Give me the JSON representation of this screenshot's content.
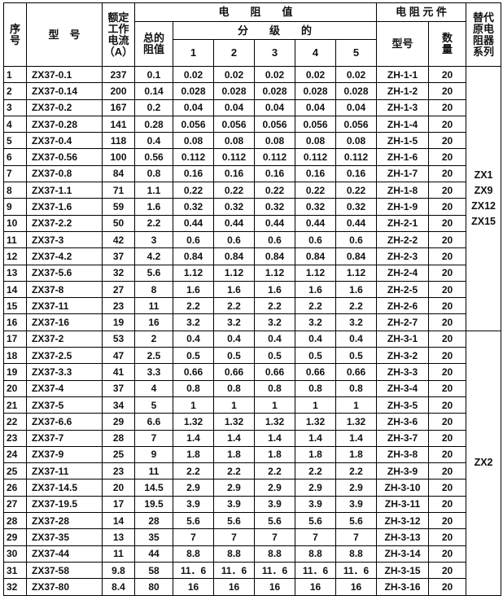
{
  "header": {
    "index": "序号",
    "model": "型　号",
    "rated_current": [
      "额定",
      "工作",
      "电流",
      "（A）"
    ],
    "resistance": "电　　阻　　值",
    "total": [
      "总的",
      "阻值"
    ],
    "graded": "分　　级　　的",
    "grades": [
      "1",
      "2",
      "3",
      "4",
      "5"
    ],
    "element": "电 阻 元 件",
    "element_model": "型号",
    "quantity": [
      "数",
      "量"
    ],
    "replaces": [
      "替代",
      "原电",
      "阻器",
      "系列"
    ]
  },
  "rows": [
    [
      "1",
      "ZX37-0.1",
      "237",
      "0.1",
      "0.02",
      "0.02",
      "0.02",
      "0.02",
      "0.02",
      "ZH-1-1",
      "20"
    ],
    [
      "2",
      "ZX37-0.14",
      "200",
      "0.14",
      "0.028",
      "0.028",
      "0.028",
      "0.028",
      "0.028",
      "ZH-1-2",
      "20"
    ],
    [
      "3",
      "ZX37-0.2",
      "167",
      "0.2",
      "0.04",
      "0.04",
      "0.04",
      "0.04",
      "0.04",
      "ZH-1-3",
      "20"
    ],
    [
      "4",
      "ZX37-0.28",
      "141",
      "0.28",
      "0.056",
      "0.056",
      "0.056",
      "0.056",
      "0.056",
      "ZH-1-4",
      "20"
    ],
    [
      "5",
      "ZX37-0.4",
      "118",
      "0.4",
      "0.08",
      "0.08",
      "0.08",
      "0.08",
      "0.08",
      "ZH-1-5",
      "20"
    ],
    [
      "6",
      "ZX37-0.56",
      "100",
      "0.56",
      "0.112",
      "0.112",
      "0.112",
      "0.112",
      "0.112",
      "ZH-1-6",
      "20"
    ],
    [
      "7",
      "ZX37-0.8",
      "84",
      "0.8",
      "0.16",
      "0.16",
      "0.16",
      "0.16",
      "0.16",
      "ZH-1-7",
      "20"
    ],
    [
      "8",
      "ZX37-1.1",
      "71",
      "1.1",
      "0.22",
      "0.22",
      "0.22",
      "0.22",
      "0.22",
      "ZH-1-8",
      "20"
    ],
    [
      "9",
      "ZX37-1.6",
      "59",
      "1.6",
      "0.32",
      "0.32",
      "0.32",
      "0.32",
      "0.32",
      "ZH-1-9",
      "20"
    ],
    [
      "10",
      "ZX37-2.2",
      "50",
      "2.2",
      "0.44",
      "0.44",
      "0.44",
      "0.44",
      "0.44",
      "ZH-2-1",
      "20"
    ],
    [
      "11",
      "ZX37-3",
      "42",
      "3",
      "0.6",
      "0.6",
      "0.6",
      "0.6",
      "0.6",
      "ZH-2-2",
      "20"
    ],
    [
      "12",
      "ZX37-4.2",
      "37",
      "4.2",
      "0.84",
      "0.84",
      "0.84",
      "0.84",
      "0.84",
      "ZH-2-3",
      "20"
    ],
    [
      "13",
      "ZX37-5.6",
      "32",
      "5.6",
      "1.12",
      "1.12",
      "1.12",
      "1.12",
      "1.12",
      "ZH-2-4",
      "20"
    ],
    [
      "14",
      "ZX37-8",
      "27",
      "8",
      "1.6",
      "1.6",
      "1.6",
      "1.6",
      "1.6",
      "ZH-2-5",
      "20"
    ],
    [
      "15",
      "ZX37-11",
      "23",
      "11",
      "2.2",
      "2.2",
      "2.2",
      "2.2",
      "2.2",
      "ZH-2-6",
      "20"
    ],
    [
      "16",
      "ZX37-16",
      "19",
      "16",
      "3.2",
      "3.2",
      "3.2",
      "3.2",
      "3.2",
      "ZH-2-7",
      "20"
    ],
    [
      "17",
      "ZX37-2",
      "53",
      "2",
      "0.4",
      "0.4",
      "0.4",
      "0.4",
      "0.4",
      "ZH-3-1",
      "20"
    ],
    [
      "18",
      "ZX37-2.5",
      "47",
      "2.5",
      "0.5",
      "0.5",
      "0.5",
      "0.5",
      "0.5",
      "ZH-3-2",
      "20"
    ],
    [
      "19",
      "ZX37-3.3",
      "41",
      "3.3",
      "0.66",
      "0.66",
      "0.66",
      "0.66",
      "0.66",
      "ZH-3-3",
      "20"
    ],
    [
      "20",
      "ZX37-4",
      "37",
      "4",
      "0.8",
      "0.8",
      "0.8",
      "0.8",
      "0.8",
      "ZH-3-4",
      "20"
    ],
    [
      "21",
      "ZX37-5",
      "34",
      "5",
      "1",
      "1",
      "1",
      "1",
      "1",
      "ZH-3-5",
      "20"
    ],
    [
      "22",
      "ZX37-6.6",
      "29",
      "6.6",
      "1.32",
      "1.32",
      "1.32",
      "1.32",
      "1.32",
      "ZH-3-6",
      "20"
    ],
    [
      "23",
      "ZX37-7",
      "28",
      "7",
      "1.4",
      "1.4",
      "1.4",
      "1.4",
      "1.4",
      "ZH-3-7",
      "20"
    ],
    [
      "24",
      "ZX37-9",
      "25",
      "9",
      "1.8",
      "1.8",
      "1.8",
      "1.8",
      "1.8",
      "ZH-3-8",
      "20"
    ],
    [
      "25",
      "ZX37-11",
      "23",
      "11",
      "2.2",
      "2.2",
      "2.2",
      "2.2",
      "2.2",
      "ZH-3-9",
      "20"
    ],
    [
      "26",
      "ZX37-14.5",
      "20",
      "14.5",
      "2.9",
      "2.9",
      "2.9",
      "2.9",
      "2.9",
      "ZH-3-10",
      "20"
    ],
    [
      "27",
      "ZX37-19.5",
      "17",
      "19.5",
      "3.9",
      "3.9",
      "3.9",
      "3.9",
      "3.9",
      "ZH-3-11",
      "20"
    ],
    [
      "28",
      "ZX37-28",
      "14",
      "28",
      "5.6",
      "5.6",
      "5.6",
      "5.6",
      "5.6",
      "ZH-3-12",
      "20"
    ],
    [
      "29",
      "ZX37-35",
      "13",
      "35",
      "7",
      "7",
      "7",
      "7",
      "7",
      "ZH-3-13",
      "20"
    ],
    [
      "30",
      "ZX37-44",
      "11",
      "44",
      "8.8",
      "8.8",
      "8.8",
      "8.8",
      "8.8",
      "ZH-3-14",
      "20"
    ],
    [
      "31",
      "ZX37-58",
      "9.8",
      "58",
      "11．6",
      "11．6",
      "11．6",
      "11．6",
      "11．6",
      "ZH-3-15",
      "20"
    ],
    [
      "32",
      "ZX37-80",
      "8.4",
      "80",
      "16",
      "16",
      "16",
      "16",
      "16",
      "ZH-3-16",
      "20"
    ]
  ],
  "replacement_groups": [
    {
      "lines": [
        "ZX1",
        "ZX9",
        "ZX12",
        "ZX15"
      ],
      "span": 16
    },
    {
      "lines": [
        "ZX2"
      ],
      "span": 16
    }
  ]
}
